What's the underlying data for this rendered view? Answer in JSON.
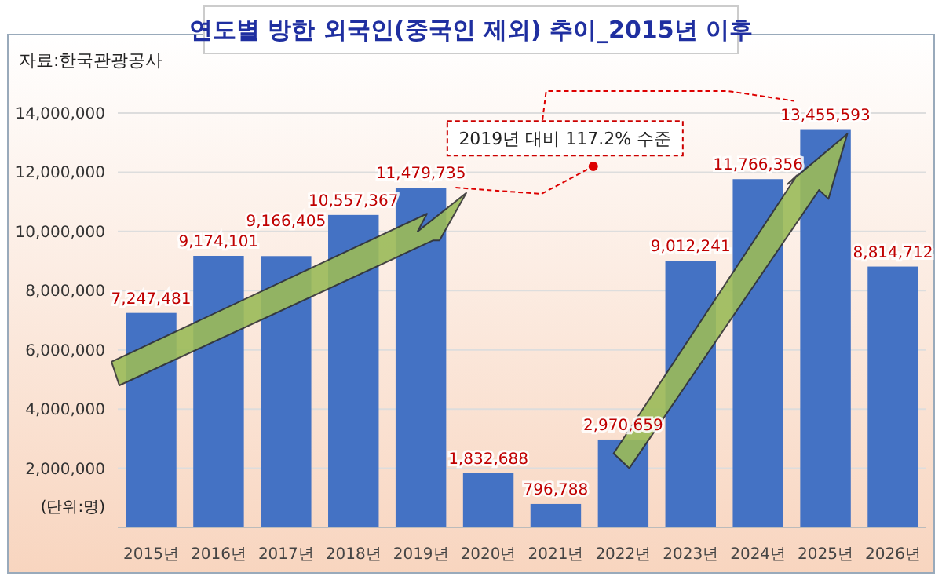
{
  "chart_data": {
    "type": "bar",
    "title": "연도별 방한 외국인(중국인 제외) 추이_2015년 이후",
    "categories": [
      "2015년",
      "2016년",
      "2017년",
      "2018년",
      "2019년",
      "2020년",
      "2021년",
      "2022년",
      "2023년",
      "2024년",
      "2025년",
      "2026년"
    ],
    "values": [
      7247481,
      9174101,
      9166405,
      10557367,
      11479735,
      1832688,
      796788,
      2970659,
      9012241,
      11766356,
      13455593,
      8814712
    ],
    "value_labels": [
      "7,247,481",
      "9,174,101",
      "9,166,405",
      "10,557,367",
      "11,479,735",
      "1,832,688",
      "796,788",
      "2,970,659",
      "9,012,241",
      "11,766,356",
      "13,455,593",
      "8,814,712"
    ],
    "color": "#4472c4",
    "grid": "y",
    "ylim": [
      0,
      14000000
    ],
    "yticks": [
      {
        "value": 0,
        "label": null
      },
      {
        "value": 2000000,
        "label": "2,000,000"
      },
      {
        "value": 4000000,
        "label": "4,000,000"
      },
      {
        "value": 6000000,
        "label": "6,000,000"
      },
      {
        "value": 8000000,
        "label": "8,000,000"
      },
      {
        "value": 10000000,
        "label": "10,000,000"
      },
      {
        "value": 12000000,
        "label": "12,000,000"
      },
      {
        "value": 14000000,
        "label": "14,000,000"
      }
    ],
    "annotations": [
      "자료:한국관광공사",
      "(단위:명)",
      "2019년 대비 117.2% 수준"
    ]
  }
}
